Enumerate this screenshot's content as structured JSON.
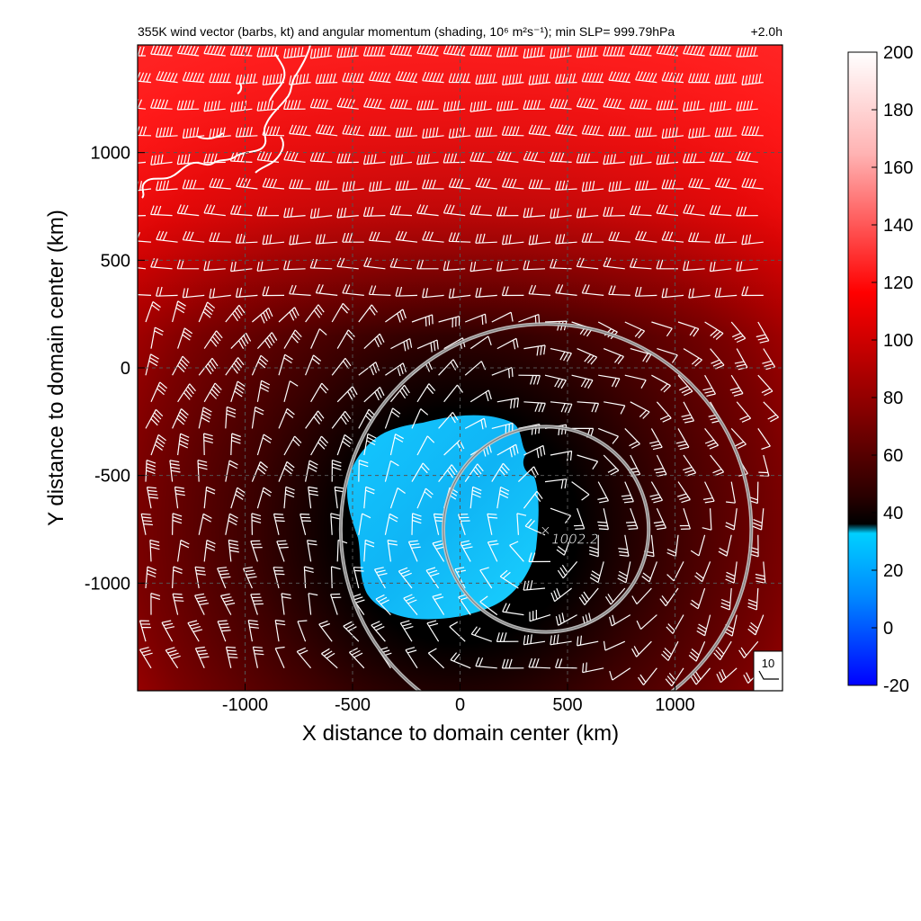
{
  "chart_data": {
    "type": "heatmap",
    "title": "355K wind vector (barbs, kt) and angular momentum (shading, 10⁶ m²s⁻¹); min SLP= 999.79hPa",
    "time_label": "+2.0h",
    "xlabel": "X distance to domain center (km)",
    "ylabel": "Y distance to domain center (km)",
    "xlim": [
      -1500,
      1500
    ],
    "ylim": [
      -1500,
      1500
    ],
    "x_ticks": [
      -1000,
      -500,
      0,
      500,
      1000
    ],
    "y_ticks": [
      1000,
      500,
      0,
      -500,
      -1000
    ],
    "grid": "dashed",
    "colorbar": {
      "ticks": [
        200,
        180,
        160,
        140,
        120,
        100,
        80,
        60,
        40,
        20,
        0,
        -20
      ],
      "range": [
        -20,
        200
      ],
      "colors": {
        "low": "#0000ff",
        "zero": "#00c8ff",
        "dark": "#000000",
        "mid": "#ff0000",
        "high": "#ffffff"
      }
    },
    "center_marker": {
      "symbol": "×",
      "label": "1002.2",
      "x": 400,
      "y": -750
    },
    "range_circles": [
      {
        "cx": 400,
        "cy": -750,
        "radius_km": 500
      },
      {
        "cx": 400,
        "cy": -750,
        "radius_km": 1000
      }
    ],
    "negative_region_label": "angular momentum < 0 (cyan blob)",
    "reference_barb": {
      "label": "10",
      "units": "kt"
    }
  }
}
